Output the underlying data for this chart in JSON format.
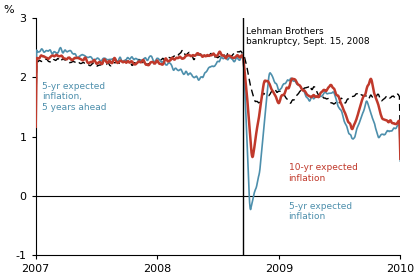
{
  "ylabel": "%",
  "ylim": [
    -1,
    3
  ],
  "xlim": [
    2007.0,
    2010.0
  ],
  "yticks": [
    -1,
    0,
    1,
    2,
    3
  ],
  "xticks": [
    2007,
    2008,
    2009,
    2010
  ],
  "lehman_date": 2008.708,
  "lehman_label": "Lehman Brothers\nbankruptcy, Sept. 15, 2008",
  "label_5yr_5yr": "5-yr expected\ninflation,\n5 years ahead",
  "label_10yr": "10-yr expected\ninflation",
  "label_5yr": "5-yr expected\ninflation",
  "color_10yr": "#c0392b",
  "color_5yr": "#4d8fac",
  "color_5yr5yr": "#000000",
  "color_label_5yr5yr": "#4d8fac",
  "lw_10yr": 1.8,
  "lw_5yr": 1.2,
  "lw_5yr5yr": 1.0,
  "background_color": "#ffffff"
}
